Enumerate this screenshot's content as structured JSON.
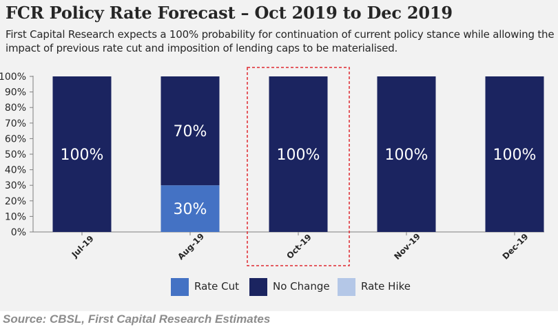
{
  "header": {
    "title": "FCR Policy Rate Forecast – Oct 2019 to Dec 2019",
    "subtitle": "First Capital Research expects a 100% probability for continuation of current policy stance while allowing the impact of previous rate cut and imposition of lending caps to be materialised."
  },
  "source": "Source: CBSL, First Capital Research Estimates",
  "colors": {
    "rate_cut": "#4472c4",
    "no_change": "#1b2460",
    "rate_hike": "#b4c7e7",
    "highlight_border": "#e0282e"
  },
  "legend": [
    {
      "label": "Rate Cut",
      "color": "#4472c4"
    },
    {
      "label": "No Change",
      "color": "#1b2460"
    },
    {
      "label": "Rate Hike",
      "color": "#b4c7e7"
    }
  ],
  "chart_data": {
    "type": "bar",
    "stacked": true,
    "categories": [
      "Jul-19",
      "Aug-19",
      "Oct-19",
      "Nov-19",
      "Dec-19"
    ],
    "series": [
      {
        "name": "Rate Cut",
        "values": [
          0,
          30,
          0,
          0,
          0
        ],
        "color": "#4472c4"
      },
      {
        "name": "No Change",
        "values": [
          100,
          70,
          100,
          100,
          100
        ],
        "color": "#1b2460"
      },
      {
        "name": "Rate Hike",
        "values": [
          0,
          0,
          0,
          0,
          0
        ],
        "color": "#b4c7e7"
      }
    ],
    "data_labels": [
      [
        "",
        "30%",
        "",
        "",
        ""
      ],
      [
        "100%",
        "70%",
        "100%",
        "100%",
        "100%"
      ],
      [
        "",
        "",
        "",
        "",
        ""
      ]
    ],
    "highlighted_category": "Oct-19",
    "y_ticks": [
      "0%",
      "10%",
      "20%",
      "30%",
      "40%",
      "50%",
      "60%",
      "70%",
      "80%",
      "90%",
      "100%"
    ],
    "ylim": [
      0,
      100
    ],
    "grid": false,
    "legend_position": "bottom"
  }
}
